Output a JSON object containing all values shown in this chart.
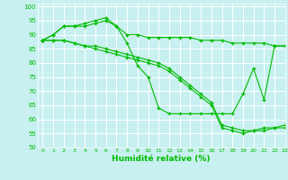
{
  "xlabel": "Humidité relative (%)",
  "bg_color": "#c8f0f0",
  "grid_color": "#ffffff",
  "line_color": "#00bb00",
  "marker": "+",
  "xlim": [
    -0.5,
    23
  ],
  "ylim": [
    50,
    101
  ],
  "yticks": [
    50,
    55,
    60,
    65,
    70,
    75,
    80,
    85,
    90,
    95,
    100
  ],
  "xticks": [
    0,
    1,
    2,
    3,
    4,
    5,
    6,
    7,
    8,
    9,
    10,
    11,
    12,
    13,
    14,
    15,
    16,
    17,
    18,
    19,
    20,
    21,
    22,
    23
  ],
  "series": [
    [
      88,
      90,
      93,
      93,
      94,
      95,
      96,
      93,
      87,
      79,
      75,
      64,
      62,
      62,
      62,
      62,
      62,
      62,
      62,
      69,
      78,
      67,
      86,
      86
    ],
    [
      88,
      90,
      93,
      93,
      93,
      94,
      95,
      93,
      90,
      90,
      89,
      89,
      89,
      89,
      89,
      88,
      88,
      88,
      87,
      87,
      87,
      87,
      86,
      86
    ],
    [
      88,
      88,
      88,
      87,
      86,
      86,
      85,
      84,
      83,
      82,
      81,
      80,
      78,
      75,
      72,
      69,
      66,
      58,
      57,
      56,
      56,
      57,
      57,
      58
    ],
    [
      88,
      88,
      88,
      87,
      86,
      85,
      84,
      83,
      82,
      81,
      80,
      79,
      77,
      74,
      71,
      68,
      65,
      57,
      56,
      55,
      56,
      56,
      57,
      57
    ]
  ]
}
